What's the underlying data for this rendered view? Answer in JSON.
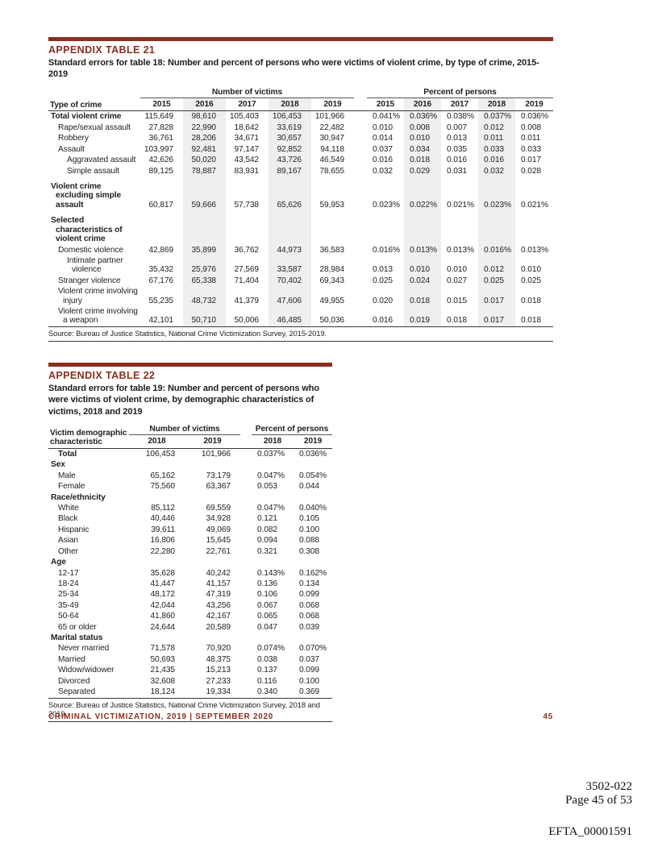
{
  "table21": {
    "label": "APPENDIX TABLE 21",
    "title": "Standard errors for table 18: Number and percent of persons who were victims of violent crime, by type of crime, 2015-2019",
    "row_header": "Type of crime",
    "group_number": "Number of victims",
    "group_percent": "Percent of persons",
    "years": [
      "2015",
      "2016",
      "2017",
      "2018",
      "2019"
    ],
    "rows": [
      {
        "label": "Total violent crime",
        "bold": true,
        "indent": 0,
        "values": [
          "115,649",
          "98,610",
          "105,403",
          "106,453",
          "101,966",
          "0.041%",
          "0.036%",
          "0.038%",
          "0.037%",
          "0.036%"
        ]
      },
      {
        "label": "Rape/sexual assault",
        "indent": 1,
        "values": [
          "27,828",
          "22,990",
          "18,642",
          "33,619",
          "22,482",
          "0.010",
          "0.008",
          "0.007",
          "0.012",
          "0.008"
        ]
      },
      {
        "label": "Robbery",
        "indent": 1,
        "values": [
          "36,761",
          "28,206",
          "34,671",
          "30,657",
          "30,947",
          "0.014",
          "0.010",
          "0.013",
          "0.011",
          "0.011"
        ]
      },
      {
        "label": "Assault",
        "indent": 1,
        "values": [
          "103,997",
          "92,481",
          "97,147",
          "92,852",
          "94,118",
          "0.037",
          "0.034",
          "0.035",
          "0.033",
          "0.033"
        ]
      },
      {
        "label": "Aggravated assault",
        "indent": 2,
        "values": [
          "42,626",
          "50,020",
          "43,542",
          "43,726",
          "46,549",
          "0.016",
          "0.018",
          "0.016",
          "0.016",
          "0.017"
        ]
      },
      {
        "label": "Simple assault",
        "indent": 2,
        "values": [
          "89,125",
          "78,887",
          "83,931",
          "89,167",
          "78,655",
          "0.032",
          "0.029",
          "0.031",
          "0.032",
          "0.028"
        ]
      },
      {
        "label": "Violent crime excluding simple assault",
        "bold": true,
        "indent": 0,
        "spacer": true,
        "values": [
          "60,817",
          "59,666",
          "57,738",
          "65,626",
          "59,953",
          "0.023%",
          "0.022%",
          "0.021%",
          "0.023%",
          "0.021%"
        ]
      },
      {
        "label": "Selected characteristics of violent crime",
        "bold": true,
        "indent": 0,
        "spacer": true,
        "values": []
      },
      {
        "label": "Domestic violence",
        "indent": 1,
        "values": [
          "42,869",
          "35,899",
          "36,762",
          "44,973",
          "36,583",
          "0.016%",
          "0.013%",
          "0.013%",
          "0.016%",
          "0.013%"
        ]
      },
      {
        "label": "Intimate partner violence",
        "indent": 2,
        "values": [
          "35,432",
          "25,976",
          "27,569",
          "33,587",
          "28,984",
          "0.013",
          "0.010",
          "0.010",
          "0.012",
          "0.010"
        ]
      },
      {
        "label": "Stranger violence",
        "indent": 1,
        "values": [
          "67,176",
          "65,338",
          "71,404",
          "70,402",
          "69,343",
          "0.025",
          "0.024",
          "0.027",
          "0.025",
          "0.025"
        ]
      },
      {
        "label": "Violent crime involving injury",
        "indent": 1,
        "values": [
          "55,235",
          "48,732",
          "41,379",
          "47,606",
          "49,955",
          "0.020",
          "0.018",
          "0.015",
          "0.017",
          "0.018"
        ]
      },
      {
        "label": "Violent crime involving a weapon",
        "indent": 1,
        "values": [
          "42,101",
          "50,710",
          "50,006",
          "46,485",
          "50,036",
          "0.016",
          "0.019",
          "0.018",
          "0.017",
          "0.018"
        ]
      }
    ],
    "source": "Source: Bureau of Justice Statistics, National Crime Victimization Survey, 2015-2019."
  },
  "table22": {
    "label": "APPENDIX TABLE 22",
    "title": "Standard errors for table 19: Number and percent of persons who were victims of violent crime, by demographic characteristics of victims, 2018 and 2019",
    "row_header": "Victim demographic characteristic",
    "group_number": "Number of victims",
    "group_percent": "Percent of persons",
    "years": [
      "2018",
      "2019"
    ],
    "rows": [
      {
        "label": "Total",
        "bold": true,
        "indent": 1,
        "values": [
          "106,453",
          "101,966",
          "0.037%",
          "0.036%"
        ]
      },
      {
        "label": "Sex",
        "bold": true,
        "indent": 0,
        "values": []
      },
      {
        "label": "Male",
        "indent": 1,
        "values": [
          "65,162",
          "73,179",
          "0.047%",
          "0.054%"
        ]
      },
      {
        "label": "Female",
        "indent": 1,
        "values": [
          "75,560",
          "63,367",
          "0.053",
          "0.044"
        ]
      },
      {
        "label": "Race/ethnicity",
        "bold": true,
        "indent": 0,
        "values": []
      },
      {
        "label": "White",
        "indent": 1,
        "values": [
          "85,112",
          "69,559",
          "0.047%",
          "0.040%"
        ]
      },
      {
        "label": "Black",
        "indent": 1,
        "values": [
          "40,446",
          "34,928",
          "0.121",
          "0.105"
        ]
      },
      {
        "label": "Hispanic",
        "indent": 1,
        "values": [
          "39,611",
          "49,069",
          "0.082",
          "0.100"
        ]
      },
      {
        "label": "Asian",
        "indent": 1,
        "values": [
          "16,806",
          "15,645",
          "0.094",
          "0.088"
        ]
      },
      {
        "label": "Other",
        "indent": 1,
        "values": [
          "22,280",
          "22,761",
          "0.321",
          "0.308"
        ]
      },
      {
        "label": "Age",
        "bold": true,
        "indent": 0,
        "values": []
      },
      {
        "label": "12-17",
        "indent": 1,
        "values": [
          "35,628",
          "40,242",
          "0.143%",
          "0.162%"
        ]
      },
      {
        "label": "18-24",
        "indent": 1,
        "values": [
          "41,447",
          "41,157",
          "0.136",
          "0.134"
        ]
      },
      {
        "label": "25-34",
        "indent": 1,
        "values": [
          "48,172",
          "47,319",
          "0.106",
          "0.099"
        ]
      },
      {
        "label": "35-49",
        "indent": 1,
        "values": [
          "42,044",
          "43,256",
          "0.067",
          "0.068"
        ]
      },
      {
        "label": "50-64",
        "indent": 1,
        "values": [
          "41,860",
          "42,167",
          "0.065",
          "0.068"
        ]
      },
      {
        "label": "65 or older",
        "indent": 1,
        "values": [
          "24,644",
          "20,589",
          "0.047",
          "0.039"
        ]
      },
      {
        "label": "Marital status",
        "bold": true,
        "indent": 0,
        "values": []
      },
      {
        "label": "Never married",
        "indent": 1,
        "values": [
          "71,578",
          "70,920",
          "0.074%",
          "0.070%"
        ]
      },
      {
        "label": "Married",
        "indent": 1,
        "values": [
          "50,693",
          "48,375",
          "0.038",
          "0.037"
        ]
      },
      {
        "label": "Widow/widower",
        "indent": 1,
        "values": [
          "21,435",
          "15,213",
          "0.137",
          "0.099"
        ]
      },
      {
        "label": "Divorced",
        "indent": 1,
        "values": [
          "32,608",
          "27,233",
          "0.116",
          "0.100"
        ]
      },
      {
        "label": "Separated",
        "indent": 1,
        "values": [
          "18,124",
          "19,334",
          "0.340",
          "0.369"
        ]
      }
    ],
    "source": "Source: Bureau of Justice Statistics, National Crime Victimization Survey, 2018 and 2019."
  },
  "footer": {
    "left": "CRIMINAL VICTIMIZATION, 2019 | SEPTEMBER 2020",
    "page_number": "45"
  },
  "stamps": {
    "line1": "3502-022",
    "line2": "Page 45 of 53",
    "line3": "EFTA_00001591"
  },
  "colors": {
    "accent_maroon": "#8a2f1f",
    "column_shade": "#efefed"
  }
}
